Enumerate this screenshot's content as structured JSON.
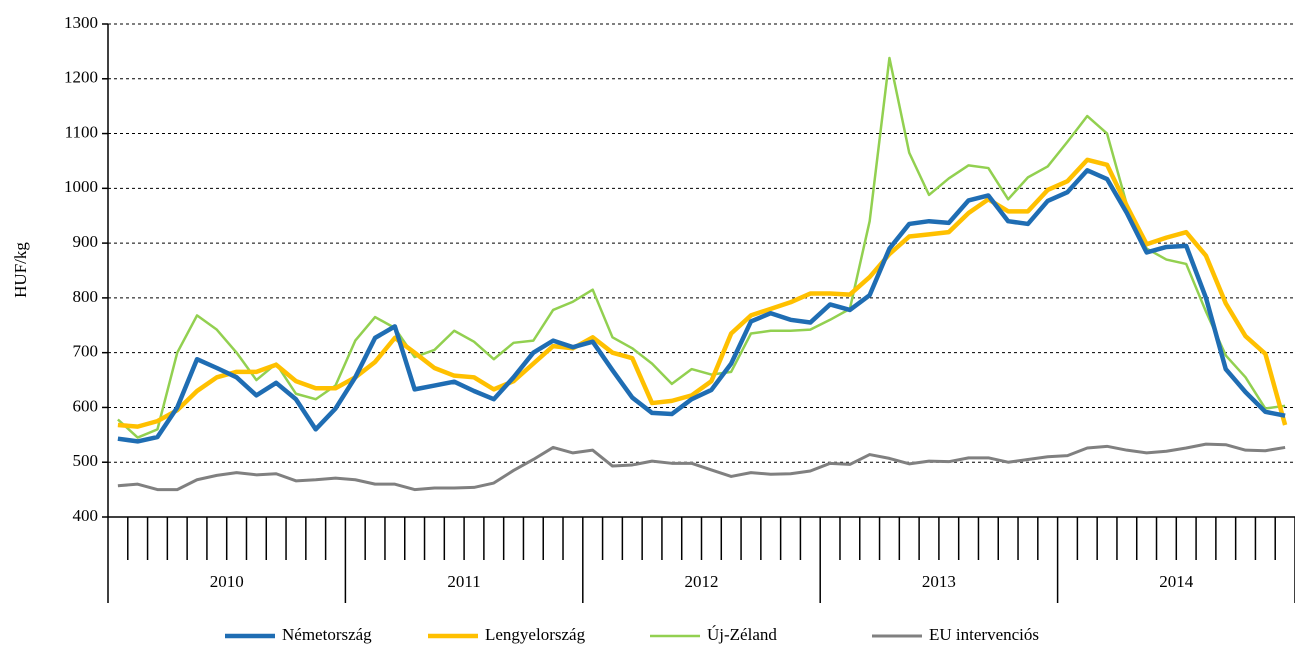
{
  "chart_data": {
    "type": "line",
    "ylabel": "HUF/kg",
    "categories": [
      null,
      null,
      null,
      null,
      null,
      null,
      null,
      null,
      null,
      null,
      null,
      null,
      null,
      null,
      null,
      null,
      null,
      null,
      null,
      null,
      null,
      null,
      null,
      null,
      null,
      null,
      null,
      null,
      null,
      null,
      null,
      null,
      null,
      null,
      null,
      null,
      null,
      null,
      null,
      null,
      null,
      null,
      null,
      null,
      null,
      null,
      null,
      null,
      null,
      null,
      null,
      null,
      null,
      null,
      null,
      null,
      null,
      null,
      null,
      null
    ],
    "years": [
      "2010",
      "2011",
      "2012",
      "2013",
      "2014"
    ],
    "ylim": [
      400,
      1300
    ],
    "yticks": [
      400,
      500,
      600,
      700,
      800,
      900,
      1000,
      1100,
      1200,
      1300
    ],
    "grid": true,
    "legend": "bottom",
    "series": [
      {
        "name": "Németország",
        "color": "#1f6db3",
        "width": 4.5,
        "values": [
          543,
          538,
          546,
          600,
          688,
          672,
          655,
          622,
          645,
          615,
          560,
          598,
          655,
          727,
          748,
          633,
          640,
          647,
          630,
          615,
          655,
          700,
          722,
          710,
          720,
          668,
          618,
          590,
          588,
          615,
          632,
          680,
          757,
          772,
          760,
          755,
          788,
          778,
          805,
          890,
          935,
          940,
          937,
          978,
          987,
          940,
          935,
          977,
          993,
          1033,
          1017,
          955,
          883,
          893,
          895,
          800,
          670,
          628,
          592,
          585
        ]
      },
      {
        "name": "Lengyelország",
        "color": "#ffc000",
        "width": 4.5,
        "values": [
          568,
          565,
          575,
          595,
          630,
          655,
          665,
          665,
          678,
          648,
          635,
          635,
          655,
          683,
          727,
          700,
          672,
          658,
          655,
          633,
          648,
          680,
          712,
          708,
          728,
          700,
          690,
          608,
          612,
          622,
          648,
          735,
          768,
          780,
          792,
          808,
          808,
          806,
          838,
          880,
          912,
          916,
          920,
          955,
          980,
          958,
          958,
          997,
          1013,
          1052,
          1043,
          968,
          898,
          910,
          920,
          877,
          790,
          730,
          698,
          568
        ]
      },
      {
        "name": "Új-Zéland",
        "color": "#92d050",
        "width": 2.5,
        "values": [
          578,
          545,
          560,
          700,
          768,
          742,
          700,
          650,
          680,
          625,
          615,
          640,
          722,
          765,
          745,
          692,
          705,
          740,
          720,
          688,
          718,
          722,
          778,
          793,
          815,
          728,
          708,
          680,
          643,
          670,
          660,
          665,
          735,
          740,
          740,
          742,
          760,
          780,
          940,
          1238,
          1065,
          988,
          1018,
          1042,
          1037,
          980,
          1020,
          1040,
          1085,
          1132,
          1100,
          970,
          890,
          870,
          862,
          775,
          695,
          655,
          598,
          603
        ]
      },
      {
        "name": "EU intervenciós",
        "color": "#808080",
        "width": 3,
        "values": [
          457,
          460,
          450,
          450,
          468,
          476,
          481,
          477,
          479,
          466,
          468,
          471,
          468,
          460,
          460,
          450,
          453,
          453,
          454,
          462,
          485,
          505,
          527,
          517,
          522,
          493,
          495,
          502,
          498,
          498,
          486,
          474,
          481,
          478,
          479,
          484,
          498,
          496,
          514,
          507,
          497,
          502,
          501,
          508,
          508,
          500,
          505,
          510,
          512,
          526,
          529,
          522,
          517,
          520,
          526,
          533,
          532,
          522,
          521,
          527
        ]
      }
    ]
  }
}
